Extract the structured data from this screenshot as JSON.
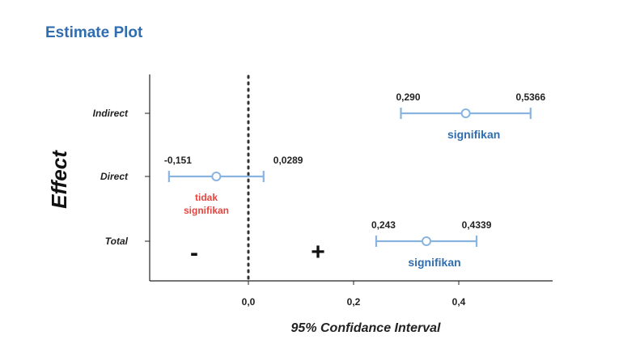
{
  "chart_data": {
    "type": "forest",
    "title": "Estimate Plot",
    "xlabel": "95% Confidance Interval",
    "ylabel": "Effect",
    "x_ticks": [
      "0,0",
      "0,2",
      "0,4"
    ],
    "x_tick_values": [
      0.0,
      0.2,
      0.4
    ],
    "xlim": [
      -0.185,
      0.575
    ],
    "reference_line": 0.0,
    "sign_labels": {
      "negative": "-",
      "positive": "+"
    },
    "rows": [
      {
        "category": "Indirect",
        "lower": 0.29,
        "upper": 0.5366,
        "estimate": 0.4133,
        "lower_label": "0,290",
        "upper_label": "0,5366",
        "note": "signifikan",
        "significant": true
      },
      {
        "category": "Direct",
        "lower": -0.151,
        "upper": 0.0289,
        "estimate": -0.061,
        "lower_label": "-0,151",
        "upper_label": "0,0289",
        "note": "tidak signifikan",
        "significant": false
      },
      {
        "category": "Total",
        "lower": 0.243,
        "upper": 0.4339,
        "estimate": 0.3385,
        "lower_label": "0,243",
        "upper_label": "0,4339",
        "note": "signifikan",
        "significant": true
      }
    ],
    "colors": {
      "interval": "#8ab4e0",
      "significant": "#2f6db0",
      "not_significant": "#e2463f",
      "axis": "#222222"
    }
  }
}
